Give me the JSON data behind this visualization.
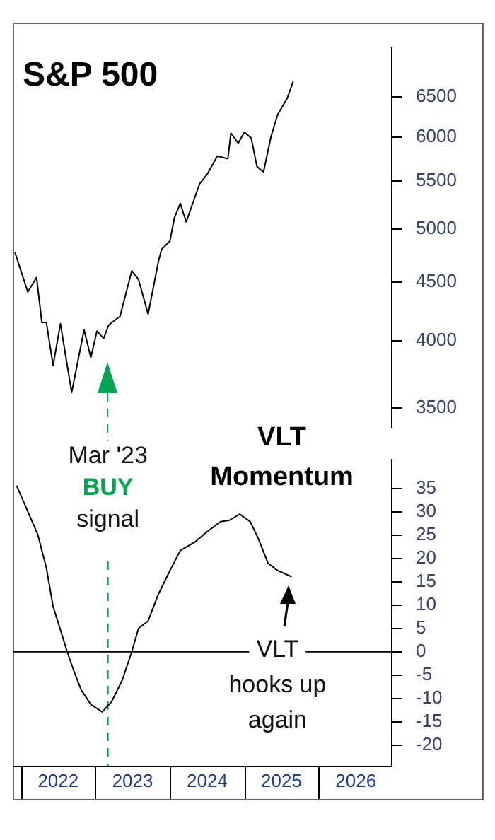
{
  "chart_data": [
    {
      "type": "line",
      "title": "S&P 500",
      "color": "#000000",
      "x": [
        "2021-12-02",
        "2022-02-03",
        "2022-03-18",
        "2022-04-13",
        "2022-05-05",
        "2022-06-07",
        "2022-07-13",
        "2022-09-06",
        "2022-11-06",
        "2022-12-09",
        "2023-01-08",
        "2023-02-10",
        "2023-03-07",
        "2023-05-01",
        "2023-06-28",
        "2023-07-31",
        "2023-09-16",
        "2023-11-06",
        "2023-11-21",
        "2024-01-01",
        "2024-01-23",
        "2024-02-21",
        "2024-03-21",
        "2024-05-26",
        "2024-07-01",
        "2024-08-21",
        "2024-10-12",
        "2024-10-27",
        "2024-12-02",
        "2025-01-01",
        "2025-02-04",
        "2025-03-04",
        "2025-04-05",
        "2025-05-12",
        "2025-06-14",
        "2025-07-31",
        "2025-08-29"
      ],
      "values": [
        4770,
        4410,
        4540,
        4150,
        4150,
        3810,
        4140,
        3610,
        4090,
        3870,
        4080,
        4020,
        4130,
        4200,
        4600,
        4520,
        4220,
        4690,
        4800,
        4880,
        5110,
        5260,
        5070,
        5470,
        5570,
        5780,
        5750,
        6050,
        5930,
        6060,
        5990,
        5660,
        5600,
        6010,
        6280,
        6490,
        6710
      ],
      "xlim": [
        "2021-11-21",
        "2026-12-25"
      ],
      "ylim": [
        3370,
        7170
      ],
      "yticks": [
        3500,
        4000,
        4500,
        5000,
        5500,
        6000,
        6500
      ],
      "log": true,
      "tick_labels": "y",
      "grid": false
    },
    {
      "type": "line",
      "title": "VLT Momentum",
      "color": "#000000",
      "x": [
        "2021-12-10",
        "2022-01-22",
        "2022-03-24",
        "2022-05-05",
        "2022-06-07",
        "2022-07-13",
        "2022-08-15",
        "2022-09-20",
        "2022-10-23",
        "2022-12-09",
        "2023-02-03",
        "2023-03-21",
        "2023-05-12",
        "2023-06-28",
        "2023-07-31",
        "2023-09-16",
        "2023-11-06",
        "2024-01-01",
        "2024-02-21",
        "2024-05-05",
        "2024-07-01",
        "2024-09-06",
        "2024-10-20",
        "2024-12-09",
        "2025-01-30",
        "2025-03-11",
        "2025-04-27",
        "2025-06-14",
        "2025-08-21"
      ],
      "values": [
        35.6,
        31.3,
        25.1,
        18,
        9.7,
        4.7,
        0,
        -4.5,
        -8.2,
        -11.3,
        -12.9,
        -10.7,
        -6.1,
        0,
        5,
        6.6,
        12.4,
        17.4,
        21.7,
        23.6,
        25.7,
        27.9,
        28.2,
        29.5,
        27.9,
        24.2,
        19,
        17.4,
        16.1
      ],
      "xlim": [
        "2021-11-21",
        "2026-12-25"
      ],
      "ylim": [
        -24.6,
        41.2
      ],
      "yticks": [
        -20,
        -15,
        -10,
        -5,
        0,
        5,
        10,
        15,
        20,
        25,
        30,
        35
      ],
      "xticks": [
        {
          "value": "2022-07-02",
          "label": "2022"
        },
        {
          "value": "2023-07-02",
          "label": "2023"
        },
        {
          "value": "2024-07-02",
          "label": "2024"
        },
        {
          "value": "2025-07-02",
          "label": "2025"
        },
        {
          "value": "2026-07-02",
          "label": "2026"
        }
      ],
      "ref_lines": [
        {
          "axis": "x",
          "value": "2023-03-03",
          "label": "Mar '23\nBUY\nsignal",
          "color": "#00a651",
          "line_style": "dashed"
        },
        {
          "axis": "y",
          "value": 0,
          "color": "#000000"
        }
      ],
      "annotations": [
        {
          "text": "VLT hooks up again",
          "x": "2025-08-21",
          "y": 16.1
        }
      ],
      "grid": false
    }
  ]
}
